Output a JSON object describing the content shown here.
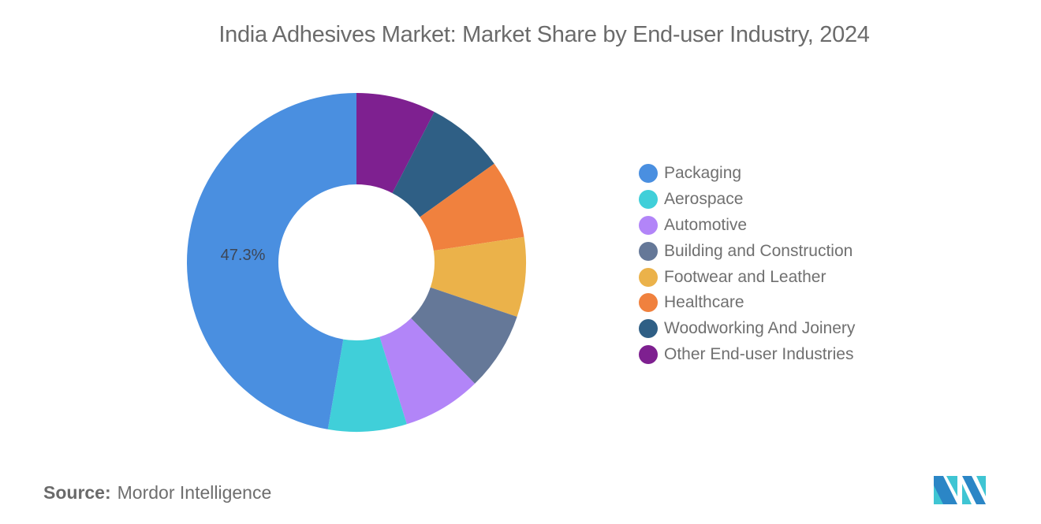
{
  "title": "India Adhesives Market: Market Share by End-user Industry, 2024",
  "source": {
    "label": "Source:",
    "value": "Mordor Intelligence"
  },
  "logo": {
    "icon": "mordor-intelligence-logo"
  },
  "chart_data": {
    "type": "pie",
    "variant": "donut",
    "title": "India Adhesives Market: Market Share by End-user Industry, 2024",
    "unit": "%",
    "categories": [
      "Packaging",
      "Aerospace",
      "Automotive",
      "Building and Construction",
      "Footwear and Leather",
      "Healthcare",
      "Woodworking And Joinery",
      "Other End-user Industries"
    ],
    "values": [
      47.3,
      7.5,
      7.5,
      7.5,
      7.6,
      7.5,
      7.5,
      7.6
    ],
    "colors": [
      "#4a8fe0",
      "#40cfd9",
      "#b285f8",
      "#657898",
      "#ebb24a",
      "#f0813e",
      "#2f5f85",
      "#7e2090"
    ],
    "labeled_values": {
      "Packaging": "47.3%"
    },
    "legend_position": "right",
    "slice_order_clockwise_from_top": [
      "Other End-user Industries",
      "Woodworking And Joinery",
      "Healthcare",
      "Footwear and Leather",
      "Building and Construction",
      "Automotive",
      "Aerospace",
      "Packaging"
    ]
  },
  "legend": {
    "items": [
      {
        "label": "Packaging",
        "color": "#4a8fe0"
      },
      {
        "label": "Aerospace",
        "color": "#40cfd9"
      },
      {
        "label": "Automotive",
        "color": "#b285f8"
      },
      {
        "label": "Building and Construction",
        "color": "#657898"
      },
      {
        "label": "Footwear and Leather",
        "color": "#ebb24a"
      },
      {
        "label": "Healthcare",
        "color": "#f0813e"
      },
      {
        "label": "Woodworking And Joinery",
        "color": "#2f5f85"
      },
      {
        "label": "Other End-user Industries",
        "color": "#7e2090"
      }
    ]
  }
}
